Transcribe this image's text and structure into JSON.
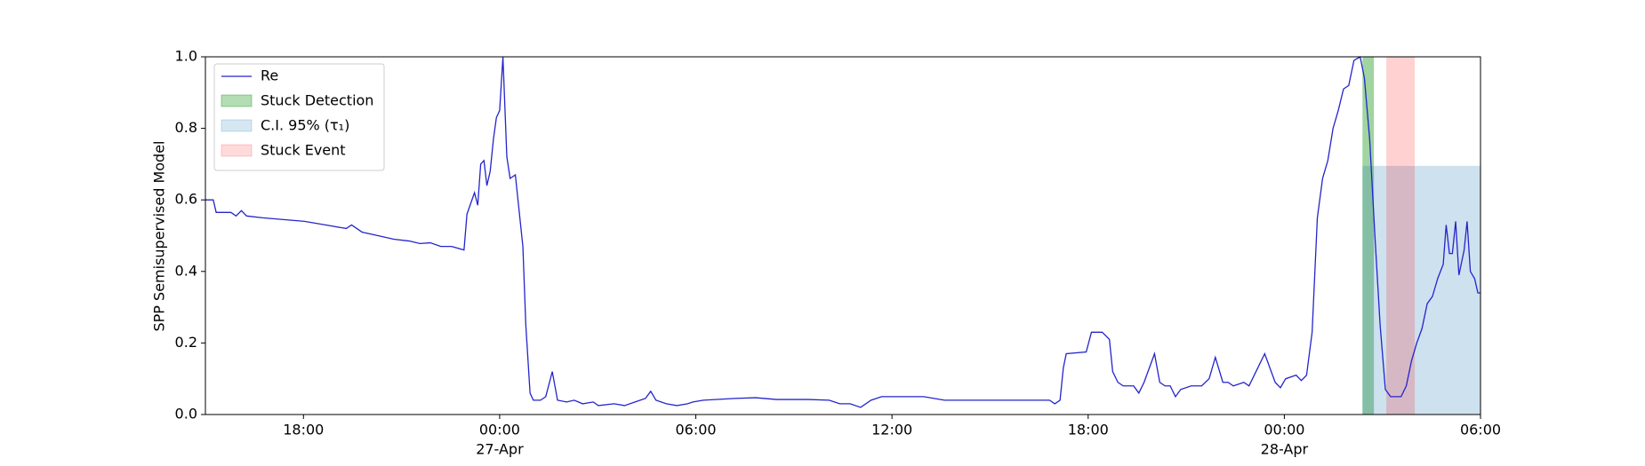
{
  "chart_data": {
    "type": "line",
    "ylabel": "SPP Semisupervised Model",
    "x": [
      -9.0,
      -8.76,
      -8.67,
      -8.22,
      -8.06,
      -7.9,
      -7.74,
      -7.25,
      -6.61,
      -5.97,
      -5.33,
      -4.69,
      -4.53,
      -4.21,
      -3.72,
      -3.24,
      -2.76,
      -2.44,
      -2.12,
      -1.8,
      -1.48,
      -1.09,
      -1.0,
      -0.77,
      -0.67,
      -0.58,
      -0.48,
      -0.39,
      -0.29,
      -0.19,
      -0.1,
      0,
      0.1,
      0.22,
      0.32,
      0.48,
      0.71,
      0.8,
      0.93,
      1.03,
      1.25,
      1.41,
      1.61,
      1.77,
      2.05,
      2.28,
      2.54,
      2.86,
      3.02,
      3.5,
      3.82,
      4.14,
      4.46,
      4.62,
      4.78,
      5.1,
      5.42,
      5.75,
      5.91,
      6.23,
      7.19,
      7.83,
      8.47,
      9.44,
      10.08,
      10.4,
      10.72,
      11.04,
      11.36,
      11.68,
      12.33,
      12.97,
      13.61,
      14.89,
      16.82,
      16.98,
      17.14,
      17.24,
      17.33,
      17.94,
      18.1,
      18.43,
      18.65,
      18.75,
      18.91,
      19.07,
      19.39,
      19.55,
      19.71,
      20.03,
      20.19,
      20.35,
      20.51,
      20.67,
      20.83,
      21.15,
      21.47,
      21.7,
      21.89,
      22.12,
      22.28,
      22.44,
      22.76,
      22.92,
      23.24,
      23.4,
      23.72,
      23.88,
      24.04,
      24.36,
      24.52,
      24.68,
      24.85,
      25.01,
      25.17,
      25.33,
      25.49,
      25.65,
      25.81,
      25.97,
      26.13,
      26.32,
      26.45,
      26.61,
      26.77,
      26.93,
      27.09,
      27.25,
      27.57,
      27.73,
      27.89,
      28.05,
      28.21,
      28.37,
      28.53,
      28.69,
      28.86,
      28.95,
      29.05,
      29.14,
      29.24,
      29.34,
      29.5,
      29.59,
      29.69,
      29.82,
      29.92,
      30.0
    ],
    "series": [
      {
        "name": "Re",
        "color": "#2424cc",
        "values": [
          0.6,
          0.6,
          0.565,
          0.565,
          0.555,
          0.57,
          0.555,
          0.55,
          0.545,
          0.54,
          0.53,
          0.52,
          0.53,
          0.51,
          0.5,
          0.49,
          0.485,
          0.478,
          0.48,
          0.47,
          0.47,
          0.46,
          0.56,
          0.62,
          0.585,
          0.7,
          0.71,
          0.64,
          0.68,
          0.77,
          0.83,
          0.85,
          1.0,
          0.72,
          0.66,
          0.67,
          0.47,
          0.25,
          0.06,
          0.04,
          0.04,
          0.05,
          0.12,
          0.04,
          0.035,
          0.04,
          0.03,
          0.035,
          0.025,
          0.03,
          0.025,
          0.035,
          0.045,
          0.065,
          0.04,
          0.03,
          0.025,
          0.03,
          0.035,
          0.04,
          0.045,
          0.047,
          0.042,
          0.042,
          0.04,
          0.03,
          0.03,
          0.02,
          0.04,
          0.05,
          0.05,
          0.05,
          0.04,
          0.04,
          0.04,
          0.03,
          0.04,
          0.13,
          0.17,
          0.175,
          0.23,
          0.23,
          0.21,
          0.12,
          0.09,
          0.08,
          0.08,
          0.06,
          0.09,
          0.17,
          0.09,
          0.08,
          0.08,
          0.05,
          0.07,
          0.08,
          0.08,
          0.1,
          0.16,
          0.09,
          0.09,
          0.08,
          0.09,
          0.08,
          0.14,
          0.17,
          0.09,
          0.075,
          0.1,
          0.11,
          0.095,
          0.11,
          0.23,
          0.55,
          0.66,
          0.71,
          0.8,
          0.85,
          0.91,
          0.92,
          0.99,
          1.0,
          0.94,
          0.77,
          0.5,
          0.25,
          0.07,
          0.05,
          0.05,
          0.08,
          0.15,
          0.2,
          0.24,
          0.31,
          0.33,
          0.38,
          0.42,
          0.53,
          0.45,
          0.45,
          0.54,
          0.39,
          0.46,
          0.54,
          0.4,
          0.38,
          0.34,
          0.34
        ]
      }
    ],
    "spans": [
      {
        "name": "Stuck Detection",
        "color": "#2ca02c",
        "opacity": 0.45,
        "x0": 26.39,
        "x1": 26.74,
        "y0": 0.0,
        "y1": 1.0
      },
      {
        "name": "C.I. 95% (τ₁)",
        "color": "#1f77b4",
        "opacity": 0.22,
        "x0": 26.39,
        "x1": 30.0,
        "y0": 0.0,
        "y1": 0.695
      },
      {
        "name": "Stuck Event",
        "color": "#ff0000",
        "opacity": 0.18,
        "x0": 27.12,
        "x1": 27.99,
        "y0": 0.0,
        "y1": 1.0
      }
    ],
    "xlim": [
      -9,
      30
    ],
    "xticks": [
      {
        "value": -6,
        "label": "18:00"
      },
      {
        "value": 0,
        "label": "00:00",
        "date_label": "27-Apr"
      },
      {
        "value": 6,
        "label": "06:00"
      },
      {
        "value": 12,
        "label": "12:00"
      },
      {
        "value": 18,
        "label": "18:00"
      },
      {
        "value": 24,
        "label": "00:00",
        "date_label": "28-Apr"
      },
      {
        "value": 30,
        "label": "06:00"
      }
    ],
    "ylim": [
      0,
      1
    ],
    "yticks": [
      {
        "value": 0,
        "label": "0.0"
      },
      {
        "value": 0.2,
        "label": "0.2"
      },
      {
        "value": 0.4,
        "label": "0.4"
      },
      {
        "value": 0.6,
        "label": "0.6"
      },
      {
        "value": 0.8,
        "label": "0.8"
      },
      {
        "value": 1,
        "label": "1.0"
      }
    ],
    "legend": "upper left"
  }
}
